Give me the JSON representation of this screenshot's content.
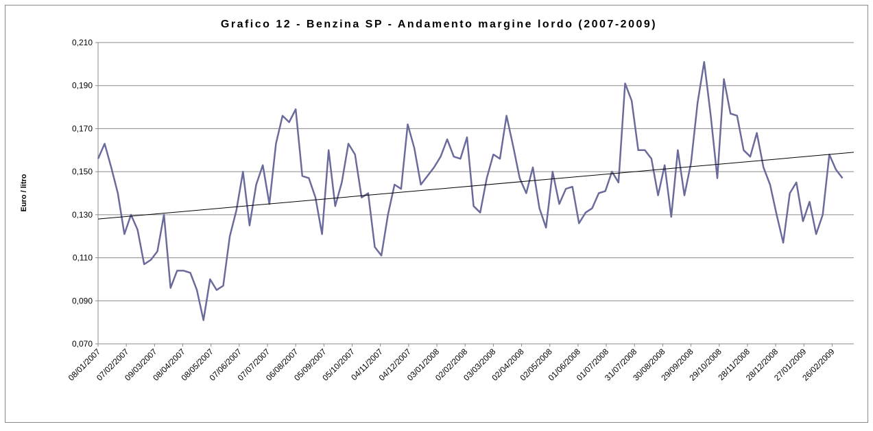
{
  "chart_data": {
    "type": "line",
    "title": "Grafico 12 - Benzina SP - Andamento margine lordo (2007-2009)",
    "ylabel": "Euro / litro",
    "color": "#6a6a9c",
    "x": [
      "08/01/2007",
      "15/01/2007",
      "22/01/2007",
      "29/01/2007",
      "05/02/2007",
      "12/02/2007",
      "19/02/2007",
      "26/02/2007",
      "05/03/2007",
      "12/03/2007",
      "19/03/2007",
      "26/03/2007",
      "02/04/2007",
      "09/04/2007",
      "16/04/2007",
      "23/04/2007",
      "30/04/2007",
      "07/05/2007",
      "14/05/2007",
      "21/05/2007",
      "28/05/2007",
      "04/06/2007",
      "11/06/2007",
      "18/06/2007",
      "25/06/2007",
      "02/07/2007",
      "09/07/2007",
      "16/07/2007",
      "23/07/2007",
      "30/07/2007",
      "06/08/2007",
      "13/08/2007",
      "20/08/2007",
      "27/08/2007",
      "03/09/2007",
      "10/09/2007",
      "17/09/2007",
      "24/09/2007",
      "01/10/2007",
      "08/10/2007",
      "15/10/2007",
      "22/10/2007",
      "29/10/2007",
      "05/11/2007",
      "12/11/2007",
      "19/11/2007",
      "26/11/2007",
      "03/12/2007",
      "10/12/2007",
      "17/12/2007",
      "24/12/2007",
      "31/12/2007",
      "07/01/2008",
      "14/01/2008",
      "21/01/2008",
      "28/01/2008",
      "04/02/2008",
      "11/02/2008",
      "18/02/2008",
      "25/02/2008",
      "03/03/2008",
      "10/03/2008",
      "17/03/2008",
      "24/03/2008",
      "31/03/2008",
      "07/04/2008",
      "14/04/2008",
      "21/04/2008",
      "28/04/2008",
      "05/05/2008",
      "12/05/2008",
      "19/05/2008",
      "26/05/2008",
      "02/06/2008",
      "09/06/2008",
      "16/06/2008",
      "23/06/2008",
      "30/06/2008",
      "07/07/2008",
      "14/07/2008",
      "21/07/2008",
      "28/07/2008",
      "04/08/2008",
      "11/08/2008",
      "18/08/2008",
      "25/08/2008",
      "01/09/2008",
      "08/09/2008",
      "15/09/2008",
      "22/09/2008",
      "29/09/2008",
      "06/10/2008",
      "13/10/2008",
      "20/10/2008",
      "27/10/2008",
      "03/11/2008",
      "10/11/2008",
      "17/11/2008",
      "24/11/2008",
      "01/12/2008",
      "08/12/2008",
      "15/12/2008",
      "22/12/2008",
      "29/12/2008",
      "05/01/2009",
      "12/01/2009",
      "19/01/2009",
      "26/01/2009",
      "02/02/2009",
      "09/02/2009",
      "16/02/2009",
      "23/02/2009",
      "02/03/2009",
      "09/03/2009"
    ],
    "values": [
      0.156,
      0.163,
      0.152,
      0.14,
      0.121,
      0.13,
      0.123,
      0.107,
      0.109,
      0.113,
      0.13,
      0.096,
      0.104,
      0.104,
      0.103,
      0.095,
      0.081,
      0.1,
      0.095,
      0.097,
      0.12,
      0.132,
      0.15,
      0.125,
      0.144,
      0.153,
      0.135,
      0.163,
      0.176,
      0.173,
      0.179,
      0.148,
      0.147,
      0.138,
      0.121,
      0.16,
      0.134,
      0.145,
      0.163,
      0.158,
      0.138,
      0.14,
      0.115,
      0.111,
      0.13,
      0.144,
      0.142,
      0.172,
      0.161,
      0.144,
      0.148,
      0.152,
      0.157,
      0.165,
      0.157,
      0.156,
      0.166,
      0.134,
      0.131,
      0.147,
      0.158,
      0.156,
      0.176,
      0.162,
      0.147,
      0.14,
      0.152,
      0.133,
      0.124,
      0.15,
      0.135,
      0.142,
      0.143,
      0.126,
      0.131,
      0.133,
      0.14,
      0.141,
      0.15,
      0.145,
      0.191,
      0.183,
      0.16,
      0.16,
      0.156,
      0.139,
      0.153,
      0.129,
      0.16,
      0.139,
      0.154,
      0.182,
      0.201,
      0.176,
      0.147,
      0.193,
      0.177,
      0.176,
      0.16,
      0.157,
      0.168,
      0.152,
      0.144,
      0.13,
      0.117,
      0.14,
      0.145,
      0.127,
      0.136,
      0.121,
      0.13,
      0.158,
      0.151,
      0.147
    ],
    "trend": {
      "x": [
        "08/01/2007",
        "21/03/2009"
      ],
      "values": [
        0.128,
        0.159
      ],
      "color": "#000000"
    },
    "xlim": [
      "08/01/2007",
      "21/03/2009"
    ],
    "xticks": [
      "08/01/2007",
      "07/02/2007",
      "09/03/2007",
      "08/04/2007",
      "08/05/2007",
      "07/06/2007",
      "07/07/2007",
      "06/08/2007",
      "05/09/2007",
      "05/10/2007",
      "04/11/2007",
      "04/12/2007",
      "03/01/2008",
      "02/02/2008",
      "03/03/2008",
      "02/04/2008",
      "02/05/2008",
      "01/06/2008",
      "01/07/2008",
      "31/07/2008",
      "30/08/2008",
      "29/09/2008",
      "29/10/2008",
      "28/11/2008",
      "28/12/2008",
      "27/01/2009",
      "26/02/2009"
    ],
    "ylim": [
      0.07,
      0.21
    ],
    "yticks": [
      {
        "value": 0.07,
        "label": "0,070"
      },
      {
        "value": 0.09,
        "label": "0,090"
      },
      {
        "value": 0.11,
        "label": "0,110"
      },
      {
        "value": 0.13,
        "label": "0,130"
      },
      {
        "value": 0.15,
        "label": "0,150"
      },
      {
        "value": 0.17,
        "label": "0,170"
      },
      {
        "value": 0.19,
        "label": "0,190"
      },
      {
        "value": 0.21,
        "label": "0,210"
      }
    ],
    "grid": true
  }
}
